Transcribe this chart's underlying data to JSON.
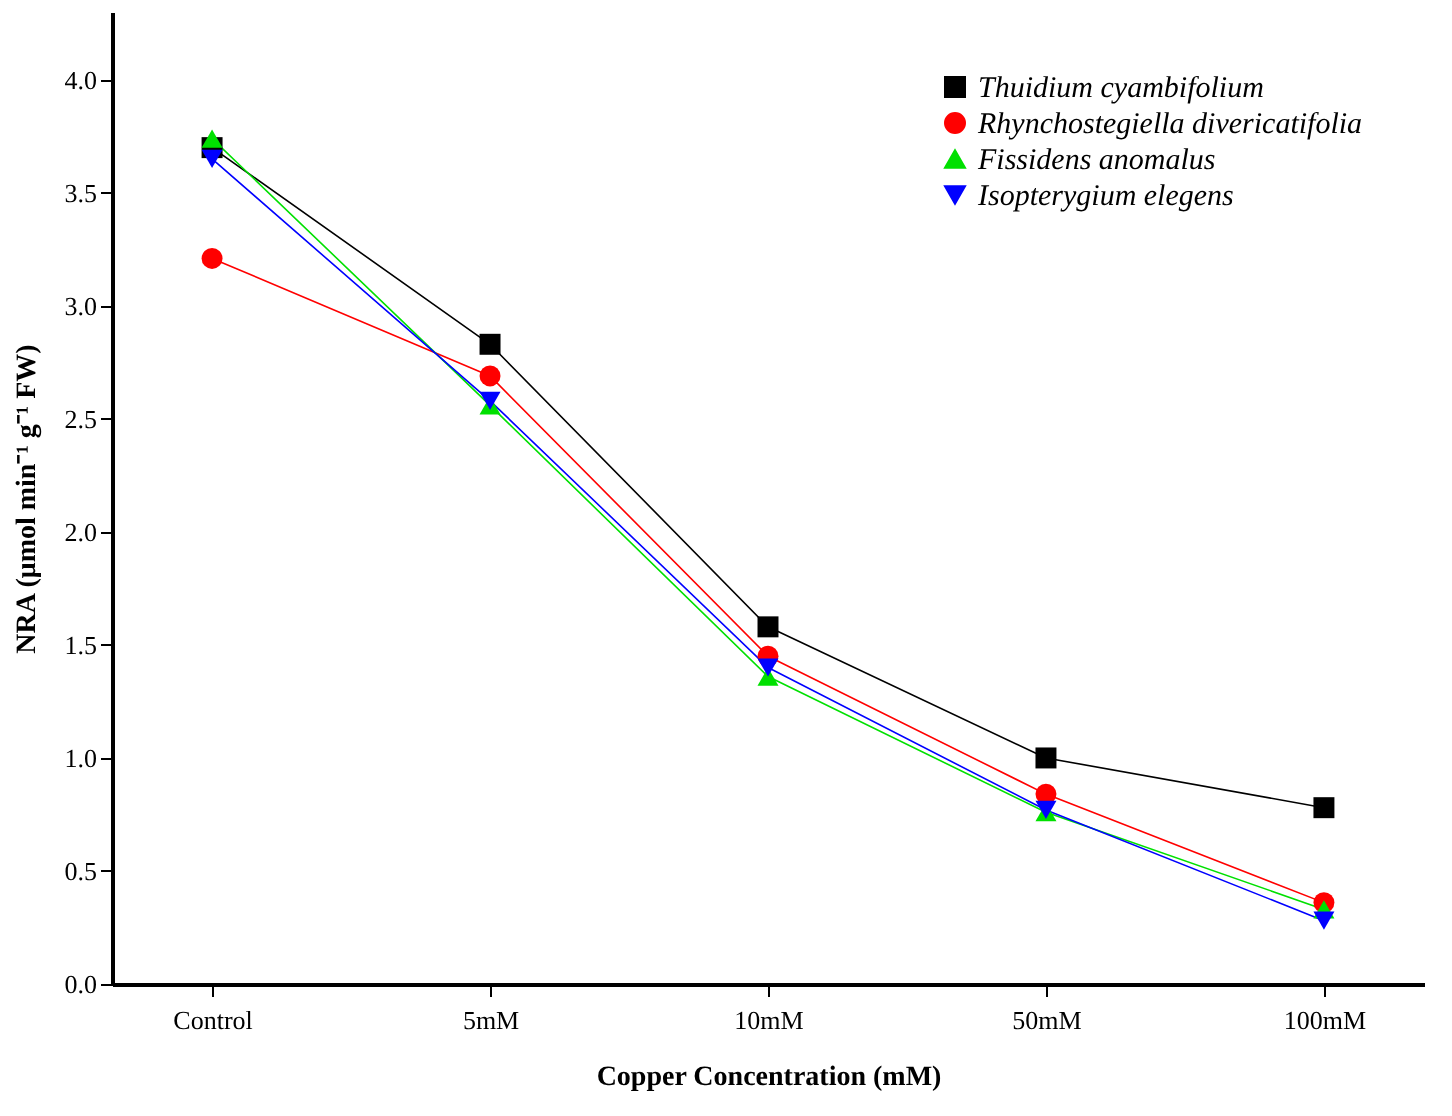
{
  "chart_data": {
    "type": "line",
    "xlabel": "Copper Concentration (mM)",
    "ylabel": "NRA (μmol min⁻¹ g⁻¹ FW)",
    "categories": [
      "Control",
      "5mM",
      "10mM",
      "50mM",
      "100mM"
    ],
    "series": [
      {
        "name": "Thuidium cyambifolium",
        "color": "#000000",
        "marker": "square",
        "values": [
          3.7,
          2.83,
          1.58,
          1.0,
          0.78
        ]
      },
      {
        "name": "Rhynchostegiella divericatifolia",
        "color": "#ff0000",
        "marker": "circle",
        "values": [
          3.21,
          2.69,
          1.45,
          0.84,
          0.36
        ]
      },
      {
        "name": "Fissidens anomalus",
        "color": "#00e000",
        "marker": "triangle",
        "values": [
          3.74,
          2.56,
          1.36,
          0.76,
          0.33
        ]
      },
      {
        "name": "Isopterygium elegens",
        "color": "#0000ff",
        "marker": "triangle-down",
        "values": [
          3.65,
          2.58,
          1.4,
          0.77,
          0.28
        ]
      }
    ],
    "ylim": [
      0,
      4.3
    ],
    "yticks": [
      {
        "value": 0,
        "label": "0.0"
      },
      {
        "value": 0.5,
        "label": "0.5"
      },
      {
        "value": 1,
        "label": "1.0"
      },
      {
        "value": 1.5,
        "label": "1.5"
      },
      {
        "value": 2,
        "label": "2.0"
      },
      {
        "value": 2.5,
        "label": "2.5"
      },
      {
        "value": 3,
        "label": "3.0"
      },
      {
        "value": 3.5,
        "label": "3.5"
      },
      {
        "value": 4,
        "label": "4.0"
      }
    ],
    "legend": "top right",
    "grid": false,
    "line_style": "solid"
  }
}
